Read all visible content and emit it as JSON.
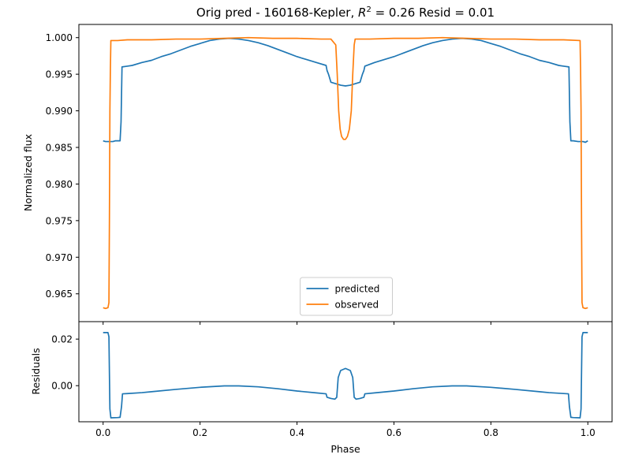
{
  "colors": {
    "predicted": "#1f77b4",
    "observed": "#ff7f0e",
    "axes": "#000000",
    "background": "#ffffff",
    "legend_border": "#cccccc"
  },
  "title": {
    "prefix": "Orig pred - 160168-Kepler, ",
    "r": "R",
    "sup": "2",
    "value": " = 0.26  Resid = 0.01"
  },
  "chart_data": [
    {
      "type": "line",
      "panel": "top",
      "ylabel": "Normalized flux",
      "xlim": [
        -0.05,
        1.05
      ],
      "ylim": [
        0.9612,
        1.0018
      ],
      "x_ticks": [
        0.0,
        0.2,
        0.4,
        0.6,
        0.8,
        1.0
      ],
      "y_ticks": [
        0.965,
        0.97,
        0.975,
        0.98,
        0.985,
        0.99,
        0.995,
        1.0
      ],
      "y_tick_labels": [
        "0.965",
        "0.970",
        "0.975",
        "0.980",
        "0.985",
        "0.990",
        "0.995",
        "1.000"
      ],
      "grid": false,
      "legend": "lower center",
      "series": [
        {
          "name": "predicted",
          "points": [
            [
              0.0,
              0.9859
            ],
            [
              0.005,
              0.9858
            ],
            [
              0.01,
              0.9858
            ],
            [
              0.015,
              0.9858
            ],
            [
              0.02,
              0.9858
            ],
            [
              0.025,
              0.9859
            ],
            [
              0.03,
              0.9859
            ],
            [
              0.035,
              0.9859
            ],
            [
              0.037,
              0.9885
            ],
            [
              0.039,
              0.996
            ],
            [
              0.05,
              0.9961
            ],
            [
              0.06,
              0.9962
            ],
            [
              0.08,
              0.9966
            ],
            [
              0.1,
              0.9969
            ],
            [
              0.12,
              0.9974
            ],
            [
              0.14,
              0.9978
            ],
            [
              0.16,
              0.9983
            ],
            [
              0.18,
              0.9988
            ],
            [
              0.2,
              0.9992
            ],
            [
              0.22,
              0.9996
            ],
            [
              0.24,
              0.9998
            ],
            [
              0.26,
              0.9999
            ],
            [
              0.28,
              0.9998
            ],
            [
              0.3,
              0.9996
            ],
            [
              0.32,
              0.9993
            ],
            [
              0.34,
              0.9989
            ],
            [
              0.36,
              0.9984
            ],
            [
              0.38,
              0.9979
            ],
            [
              0.4,
              0.9974
            ],
            [
              0.42,
              0.997
            ],
            [
              0.44,
              0.9966
            ],
            [
              0.46,
              0.9962
            ],
            [
              0.462,
              0.9955
            ],
            [
              0.465,
              0.995
            ],
            [
              0.47,
              0.9939
            ],
            [
              0.48,
              0.9937
            ],
            [
              0.49,
              0.9935
            ],
            [
              0.5,
              0.9934
            ],
            [
              0.51,
              0.9935
            ],
            [
              0.52,
              0.9937
            ],
            [
              0.53,
              0.9939
            ],
            [
              0.535,
              0.995
            ],
            [
              0.538,
              0.9955
            ],
            [
              0.54,
              0.9961
            ],
            [
              0.56,
              0.9966
            ],
            [
              0.58,
              0.997
            ],
            [
              0.6,
              0.9974
            ],
            [
              0.62,
              0.9979
            ],
            [
              0.64,
              0.9984
            ],
            [
              0.66,
              0.9989
            ],
            [
              0.68,
              0.9993
            ],
            [
              0.7,
              0.9996
            ],
            [
              0.72,
              0.9998
            ],
            [
              0.74,
              0.9999
            ],
            [
              0.76,
              0.9998
            ],
            [
              0.78,
              0.9996
            ],
            [
              0.8,
              0.9992
            ],
            [
              0.82,
              0.9988
            ],
            [
              0.84,
              0.9983
            ],
            [
              0.86,
              0.9978
            ],
            [
              0.88,
              0.9974
            ],
            [
              0.9,
              0.9969
            ],
            [
              0.92,
              0.9966
            ],
            [
              0.94,
              0.9962
            ],
            [
              0.95,
              0.9961
            ],
            [
              0.961,
              0.996
            ],
            [
              0.963,
              0.9885
            ],
            [
              0.965,
              0.9859
            ],
            [
              0.97,
              0.9859
            ],
            [
              0.98,
              0.9858
            ],
            [
              0.99,
              0.9858
            ],
            [
              0.995,
              0.9857
            ],
            [
              1.0,
              0.9859
            ]
          ]
        },
        {
          "name": "observed",
          "points": [
            [
              0.0,
              0.9631
            ],
            [
              0.005,
              0.963
            ],
            [
              0.01,
              0.9631
            ],
            [
              0.012,
              0.9638
            ],
            [
              0.013,
              0.975
            ],
            [
              0.014,
              0.99
            ],
            [
              0.015,
              0.9958
            ],
            [
              0.016,
              0.9996
            ],
            [
              0.03,
              0.9996
            ],
            [
              0.05,
              0.9997
            ],
            [
              0.08,
              0.9997
            ],
            [
              0.1,
              0.9997
            ],
            [
              0.15,
              0.9998
            ],
            [
              0.2,
              0.9998
            ],
            [
              0.25,
              0.9999
            ],
            [
              0.3,
              1.0
            ],
            [
              0.35,
              0.9999
            ],
            [
              0.4,
              0.9999
            ],
            [
              0.45,
              0.9998
            ],
            [
              0.47,
              0.9998
            ],
            [
              0.48,
              0.999
            ],
            [
              0.483,
              0.995
            ],
            [
              0.486,
              0.99
            ],
            [
              0.489,
              0.9875
            ],
            [
              0.492,
              0.9865
            ],
            [
              0.496,
              0.9861
            ],
            [
              0.5,
              0.9861
            ],
            [
              0.504,
              0.9865
            ],
            [
              0.508,
              0.9875
            ],
            [
              0.512,
              0.99
            ],
            [
              0.515,
              0.995
            ],
            [
              0.518,
              0.999
            ],
            [
              0.52,
              0.9998
            ],
            [
              0.55,
              0.9998
            ],
            [
              0.6,
              0.9999
            ],
            [
              0.65,
              0.9999
            ],
            [
              0.7,
              1.0
            ],
            [
              0.75,
              0.9999
            ],
            [
              0.8,
              0.9998
            ],
            [
              0.85,
              0.9998
            ],
            [
              0.9,
              0.9997
            ],
            [
              0.95,
              0.9997
            ],
            [
              0.984,
              0.9996
            ],
            [
              0.985,
              0.9958
            ],
            [
              0.986,
              0.99
            ],
            [
              0.987,
              0.975
            ],
            [
              0.988,
              0.9638
            ],
            [
              0.99,
              0.9631
            ],
            [
              0.995,
              0.963
            ],
            [
              1.0,
              0.9631
            ]
          ]
        }
      ]
    },
    {
      "type": "line",
      "panel": "bottom",
      "xlabel": "Phase",
      "ylabel": "Residuals",
      "xlim": [
        -0.05,
        1.05
      ],
      "ylim": [
        -0.0155,
        0.0275
      ],
      "x_ticks": [
        0.0,
        0.2,
        0.4,
        0.6,
        0.8,
        1.0
      ],
      "x_tick_labels": [
        "0.0",
        "0.2",
        "0.4",
        "0.6",
        "0.8",
        "1.0"
      ],
      "y_ticks": [
        0.0,
        0.02
      ],
      "y_tick_labels": [
        "0.00",
        "0.02"
      ],
      "grid": false,
      "series": [
        {
          "name": "residual",
          "points": [
            [
              0.0,
              0.0228
            ],
            [
              0.01,
              0.0228
            ],
            [
              0.012,
              0.021
            ],
            [
              0.014,
              -0.01
            ],
            [
              0.016,
              -0.0138
            ],
            [
              0.03,
              -0.0137
            ],
            [
              0.035,
              -0.0136
            ],
            [
              0.038,
              -0.009
            ],
            [
              0.04,
              -0.0035
            ],
            [
              0.05,
              -0.0034
            ],
            [
              0.08,
              -0.003
            ],
            [
              0.1,
              -0.0026
            ],
            [
              0.15,
              -0.0016
            ],
            [
              0.2,
              -0.0007
            ],
            [
              0.25,
              -0.0001
            ],
            [
              0.28,
              -0.0001
            ],
            [
              0.32,
              -0.0005
            ],
            [
              0.36,
              -0.0013
            ],
            [
              0.4,
              -0.0023
            ],
            [
              0.44,
              -0.0031
            ],
            [
              0.46,
              -0.0035
            ],
            [
              0.462,
              -0.005
            ],
            [
              0.47,
              -0.0055
            ],
            [
              0.478,
              -0.0058
            ],
            [
              0.482,
              -0.005
            ],
            [
              0.485,
              0.0035
            ],
            [
              0.49,
              0.0065
            ],
            [
              0.5,
              0.0074
            ],
            [
              0.51,
              0.0065
            ],
            [
              0.515,
              0.0035
            ],
            [
              0.518,
              -0.005
            ],
            [
              0.522,
              -0.0058
            ],
            [
              0.53,
              -0.0055
            ],
            [
              0.538,
              -0.005
            ],
            [
              0.54,
              -0.0035
            ],
            [
              0.56,
              -0.0031
            ],
            [
              0.6,
              -0.0023
            ],
            [
              0.64,
              -0.0013
            ],
            [
              0.68,
              -0.0005
            ],
            [
              0.72,
              -0.0001
            ],
            [
              0.75,
              -0.0001
            ],
            [
              0.8,
              -0.0007
            ],
            [
              0.85,
              -0.0016
            ],
            [
              0.9,
              -0.0026
            ],
            [
              0.92,
              -0.003
            ],
            [
              0.96,
              -0.0035
            ],
            [
              0.962,
              -0.009
            ],
            [
              0.965,
              -0.0136
            ],
            [
              0.97,
              -0.0137
            ],
            [
              0.984,
              -0.0138
            ],
            [
              0.986,
              -0.01
            ],
            [
              0.988,
              0.021
            ],
            [
              0.99,
              0.0228
            ],
            [
              1.0,
              0.0228
            ]
          ]
        }
      ]
    }
  ]
}
